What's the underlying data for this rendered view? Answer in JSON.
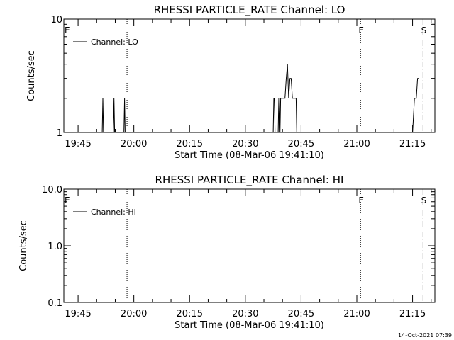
{
  "footer_timestamp": "14-Oct-2021 07:39",
  "chart_data": [
    {
      "type": "line",
      "title": "RHESSI PARTICLE_RATE Channel: LO",
      "xlabel": "Start Time (08-Mar-06 19:41:10)",
      "ylabel": "Counts/sec",
      "yscale": "log",
      "ylim": [
        1,
        10
      ],
      "ytick_values": [
        1,
        10
      ],
      "ytick_labels": [
        "1",
        "10"
      ],
      "xlim": [
        "19:41:10",
        "21:21:00"
      ],
      "xtick_values": [
        "19:45",
        "20:00",
        "20:15",
        "20:30",
        "20:45",
        "21:00",
        "21:15"
      ],
      "xtick_labels": [
        "19:45",
        "20:00",
        "20:15",
        "20:30",
        "20:45",
        "21:00",
        "21:15"
      ],
      "legend": "top-left",
      "series": [
        {
          "name": "Channel: LO",
          "x": [
            "19:51:30",
            "19:51:40",
            "19:51:50",
            "19:54:30",
            "19:54:40",
            "19:54:50",
            "19:57:20",
            "19:57:30",
            "19:57:40",
            "20:37:30",
            "20:37:40",
            "20:37:50",
            "20:38:00",
            "20:38:50",
            "20:39:00",
            "20:39:10",
            "20:39:20",
            "20:39:30",
            "20:39:40",
            "20:40:10",
            "20:40:40",
            "20:41:00",
            "20:41:20",
            "20:41:40",
            "20:42:00",
            "20:42:20",
            "20:42:40",
            "20:43:00",
            "20:43:20",
            "20:43:40",
            "20:43:50",
            "20:44:00",
            "21:15:00",
            "21:15:30",
            "21:16:00",
            "21:16:20",
            "21:16:40"
          ],
          "values": [
            1,
            2,
            1,
            1,
            2,
            1,
            1,
            2,
            1,
            1,
            2,
            2,
            1,
            1,
            2,
            2,
            1,
            2,
            2,
            2,
            2,
            3,
            4,
            2,
            3,
            3,
            2,
            2,
            2,
            2,
            1,
            1,
            1,
            2,
            2,
            3,
            3
          ]
        }
      ],
      "markers": [
        {
          "time": "19:41:10",
          "label": "E",
          "style": "none"
        },
        {
          "time": "19:58:10",
          "label": "",
          "style": "dotted"
        },
        {
          "time": "21:01:00",
          "label": "E",
          "style": "dotted"
        },
        {
          "time": "21:17:50",
          "label": "S",
          "style": "dashdot"
        }
      ]
    },
    {
      "type": "line",
      "title": "RHESSI PARTICLE_RATE Channel: HI",
      "xlabel": "Start Time (08-Mar-06 19:41:10)",
      "ylabel": "Counts/sec",
      "yscale": "log",
      "ylim": [
        0.1,
        10
      ],
      "ytick_values": [
        0.1,
        1,
        10
      ],
      "ytick_labels": [
        "0.1",
        "1.0",
        "10.0"
      ],
      "xlim": [
        "19:41:10",
        "21:21:00"
      ],
      "xtick_values": [
        "19:45",
        "20:00",
        "20:15",
        "20:30",
        "20:45",
        "21:00",
        "21:15"
      ],
      "xtick_labels": [
        "19:45",
        "20:00",
        "20:15",
        "20:30",
        "20:45",
        "21:00",
        "21:15"
      ],
      "legend": "top-left",
      "series": [
        {
          "name": "Channel: HI",
          "x": [],
          "values": []
        }
      ],
      "markers": [
        {
          "time": "19:41:10",
          "label": "E",
          "style": "none"
        },
        {
          "time": "19:58:10",
          "label": "",
          "style": "dotted"
        },
        {
          "time": "21:01:00",
          "label": "E",
          "style": "dotted"
        },
        {
          "time": "21:17:50",
          "label": "S",
          "style": "dashdot"
        }
      ]
    }
  ]
}
